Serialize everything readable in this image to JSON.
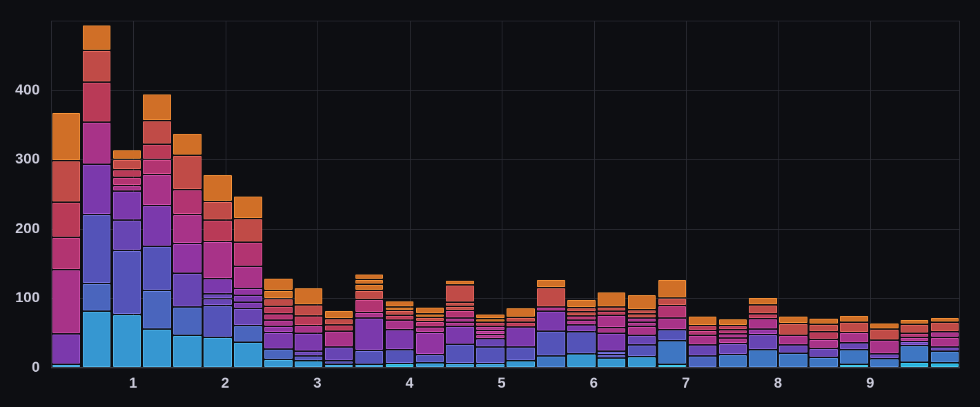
{
  "window": {
    "title": "",
    "kind": "grafana-style histogram panel"
  },
  "colors": {
    "background": "#0d0e12",
    "grid": "#2c2d35",
    "axis_line": "#3a3b44",
    "tick_text": "#ccccdc"
  },
  "chart_data": {
    "type": "bar",
    "variant": "stacked-histogram",
    "title": "",
    "legend": "none",
    "grid": "on",
    "x_axis": {
      "tick_labels": [
        "1",
        "2",
        "3",
        "4",
        "5",
        "6",
        "7",
        "8",
        "9"
      ],
      "tick_values": [
        1,
        2,
        3,
        4,
        5,
        6,
        7,
        8,
        9
      ],
      "min": 0.11,
      "max": 9.97,
      "bucket_width": 0.333
    },
    "y_axis": {
      "tick_labels": [
        "0",
        "100",
        "200",
        "300",
        "400"
      ],
      "tick_values": [
        0,
        100,
        200,
        300,
        400
      ],
      "min": 0,
      "max": 500
    },
    "palette": [
      {
        "name": "series-cyan",
        "fill": "#29b2dd",
        "border": "#4fd4f4"
      },
      {
        "name": "series-light-blue",
        "fill": "#3697d1",
        "border": "#55bdf0"
      },
      {
        "name": "series-steel-blue",
        "fill": "#3e76c2",
        "border": "#5f99e8"
      },
      {
        "name": "series-indigo",
        "fill": "#4a65bd",
        "border": "#6b89e8"
      },
      {
        "name": "series-blue-violet",
        "fill": "#5453b8",
        "border": "#7a78e2"
      },
      {
        "name": "series-violet",
        "fill": "#6745b3",
        "border": "#9067da"
      },
      {
        "name": "series-purple",
        "fill": "#7b39ac",
        "border": "#a55bd4"
      },
      {
        "name": "series-plum",
        "fill": "#9134a1",
        "border": "#bd54c9"
      },
      {
        "name": "series-magenta",
        "fill": "#a83388",
        "border": "#d453b0"
      },
      {
        "name": "series-raspberry",
        "fill": "#b23471",
        "border": "#de5497"
      },
      {
        "name": "series-crimson",
        "fill": "#b93a57",
        "border": "#e25b79"
      },
      {
        "name": "series-red",
        "fill": "#c04b47",
        "border": "#ec6f62"
      },
      {
        "name": "series-orange",
        "fill": "#d06f27",
        "border": "#f9953a"
      }
    ],
    "bars": [
      {
        "x": 0.27,
        "total": 366,
        "segments": [
          [
            1,
            3
          ],
          [
            6,
            42
          ],
          [
            8,
            90
          ],
          [
            9,
            45
          ],
          [
            10,
            49
          ],
          [
            11,
            57
          ],
          [
            12,
            68
          ]
        ]
      },
      {
        "x": 0.61,
        "total": 492,
        "segments": [
          [
            1,
            80
          ],
          [
            3,
            37
          ],
          [
            4,
            98
          ],
          [
            6,
            70
          ],
          [
            8,
            59
          ],
          [
            10,
            56
          ],
          [
            11,
            43
          ],
          [
            12,
            35
          ]
        ]
      },
      {
        "x": 0.94,
        "total": 312,
        "segments": [
          [
            1,
            75
          ],
          [
            4,
            90
          ],
          [
            5,
            42
          ],
          [
            6,
            40
          ],
          [
            8,
            6
          ],
          [
            9,
            9
          ],
          [
            10,
            9
          ],
          [
            11,
            13
          ],
          [
            12,
            12
          ]
        ]
      },
      {
        "x": 1.27,
        "total": 393,
        "segments": [
          [
            1,
            54
          ],
          [
            3,
            53
          ],
          [
            4,
            62
          ],
          [
            6,
            57
          ],
          [
            8,
            42
          ],
          [
            9,
            20
          ],
          [
            10,
            20
          ],
          [
            11,
            32
          ],
          [
            12,
            37
          ]
        ]
      },
      {
        "x": 1.61,
        "total": 336,
        "segments": [
          [
            1,
            45
          ],
          [
            3,
            39
          ],
          [
            5,
            46
          ],
          [
            7,
            41
          ],
          [
            8,
            40
          ],
          [
            9,
            34
          ],
          [
            11,
            47
          ],
          [
            12,
            30
          ]
        ]
      },
      {
        "x": 1.94,
        "total": 277,
        "segments": [
          [
            1,
            42
          ],
          [
            4,
            44
          ],
          [
            5,
            7
          ],
          [
            5,
            5
          ],
          [
            6,
            20
          ],
          [
            8,
            52
          ],
          [
            10,
            29
          ],
          [
            11,
            25
          ],
          [
            12,
            37
          ]
        ]
      },
      {
        "x": 2.27,
        "total": 246,
        "segments": [
          [
            1,
            35
          ],
          [
            3,
            22
          ],
          [
            5,
            23
          ],
          [
            6,
            7
          ],
          [
            6,
            7
          ],
          [
            7,
            8
          ],
          [
            8,
            30
          ],
          [
            9,
            33
          ],
          [
            11,
            32
          ],
          [
            12,
            31
          ]
        ]
      },
      {
        "x": 2.61,
        "total": 127,
        "segments": [
          [
            1,
            10
          ],
          [
            3,
            13
          ],
          [
            6,
            22
          ],
          [
            7,
            7
          ],
          [
            8,
            7
          ],
          [
            9,
            7
          ],
          [
            10,
            9
          ],
          [
            11,
            9
          ],
          [
            12,
            10
          ],
          [
            12,
            15
          ]
        ]
      },
      {
        "x": 2.94,
        "total": 113,
        "segments": [
          [
            1,
            8
          ],
          [
            4,
            5
          ],
          [
            5,
            5
          ],
          [
            6,
            24
          ],
          [
            8,
            9
          ],
          [
            10,
            12
          ],
          [
            11,
            14
          ],
          [
            12,
            22
          ]
        ]
      },
      {
        "x": 3.27,
        "total": 81,
        "segments": [
          [
            1,
            3
          ],
          [
            4,
            3
          ],
          [
            5,
            18
          ],
          [
            8,
            21
          ],
          [
            10,
            7
          ],
          [
            11,
            7
          ],
          [
            12,
            10
          ]
        ]
      },
      {
        "x": 3.61,
        "total": 133,
        "segments": [
          [
            1,
            3
          ],
          [
            4,
            18
          ],
          [
            6,
            45
          ],
          [
            8,
            6
          ],
          [
            9,
            17
          ],
          [
            11,
            10
          ],
          [
            12,
            7
          ],
          [
            12,
            5
          ],
          [
            12,
            6
          ]
        ]
      },
      {
        "x": 3.94,
        "total": 95,
        "segments": [
          [
            0,
            4
          ],
          [
            4,
            18
          ],
          [
            6,
            27
          ],
          [
            8,
            12
          ],
          [
            10,
            5
          ],
          [
            11,
            5
          ],
          [
            12,
            3
          ],
          [
            12,
            7
          ]
        ]
      },
      {
        "x": 4.27,
        "total": 86,
        "segments": [
          [
            1,
            5
          ],
          [
            4,
            10
          ],
          [
            7,
            30
          ],
          [
            8,
            6
          ],
          [
            9,
            6
          ],
          [
            11,
            4
          ],
          [
            12,
            3
          ],
          [
            12,
            8
          ]
        ]
      },
      {
        "x": 4.61,
        "total": 124,
        "segments": [
          [
            1,
            4
          ],
          [
            4,
            26
          ],
          [
            6,
            24
          ],
          [
            8,
            4
          ],
          [
            8,
            4
          ],
          [
            9,
            9
          ],
          [
            11,
            4
          ],
          [
            11,
            4
          ],
          [
            11,
            22
          ],
          [
            12,
            5
          ]
        ]
      },
      {
        "x": 4.94,
        "total": 76,
        "segments": [
          [
            1,
            4
          ],
          [
            4,
            22
          ],
          [
            5,
            10
          ],
          [
            8,
            4
          ],
          [
            8,
            4
          ],
          [
            8,
            4
          ],
          [
            10,
            4
          ],
          [
            12,
            3
          ],
          [
            12,
            5
          ]
        ]
      },
      {
        "x": 5.27,
        "total": 85,
        "segments": [
          [
            1,
            8
          ],
          [
            4,
            18
          ],
          [
            6,
            27
          ],
          [
            10,
            5
          ],
          [
            11,
            5
          ],
          [
            12,
            12
          ]
        ]
      },
      {
        "x": 5.61,
        "total": 125,
        "segments": [
          [
            2,
            15
          ],
          [
            4,
            34
          ],
          [
            6,
            27
          ],
          [
            8,
            4
          ],
          [
            11,
            25
          ],
          [
            12,
            10
          ]
        ]
      },
      {
        "x": 5.94,
        "total": 97,
        "segments": [
          [
            1,
            18
          ],
          [
            4,
            30
          ],
          [
            6,
            8
          ],
          [
            8,
            5
          ],
          [
            9,
            4
          ],
          [
            11,
            4
          ],
          [
            11,
            4
          ],
          [
            12,
            10
          ]
        ]
      },
      {
        "x": 6.27,
        "total": 108,
        "segments": [
          [
            1,
            12
          ],
          [
            4,
            3
          ],
          [
            4,
            3
          ],
          [
            6,
            24
          ],
          [
            8,
            6
          ],
          [
            8,
            16
          ],
          [
            10,
            4
          ],
          [
            11,
            4
          ],
          [
            12,
            20
          ]
        ]
      },
      {
        "x": 6.61,
        "total": 104,
        "segments": [
          [
            1,
            14
          ],
          [
            4,
            15
          ],
          [
            5,
            12
          ],
          [
            8,
            11
          ],
          [
            8,
            4
          ],
          [
            8,
            4
          ],
          [
            11,
            4
          ],
          [
            11,
            4
          ],
          [
            12,
            20
          ]
        ]
      },
      {
        "x": 6.94,
        "total": 125,
        "segments": [
          [
            0,
            3
          ],
          [
            2,
            32
          ],
          [
            4,
            14
          ],
          [
            8,
            15
          ],
          [
            9,
            16
          ],
          [
            11,
            9
          ],
          [
            12,
            24
          ]
        ]
      },
      {
        "x": 7.27,
        "total": 73,
        "segments": [
          [
            3,
            15
          ],
          [
            5,
            14
          ],
          [
            8,
            12
          ],
          [
            9,
            5
          ],
          [
            10,
            5
          ],
          [
            12,
            12
          ]
        ]
      },
      {
        "x": 7.61,
        "total": 69,
        "segments": [
          [
            2,
            17
          ],
          [
            5,
            14
          ],
          [
            8,
            6
          ],
          [
            8,
            4
          ],
          [
            9,
            4
          ],
          [
            10,
            4
          ],
          [
            12,
            8
          ]
        ]
      },
      {
        "x": 7.94,
        "total": 100,
        "segments": [
          [
            2,
            24
          ],
          [
            5,
            20
          ],
          [
            7,
            6
          ],
          [
            8,
            13
          ],
          [
            10,
            5
          ],
          [
            11,
            11
          ],
          [
            12,
            9
          ]
        ]
      },
      {
        "x": 8.27,
        "total": 73,
        "segments": [
          [
            2,
            19
          ],
          [
            5,
            10
          ],
          [
            8,
            12
          ],
          [
            11,
            15
          ],
          [
            12,
            9
          ]
        ]
      },
      {
        "x": 8.61,
        "total": 70,
        "segments": [
          [
            2,
            13
          ],
          [
            5,
            11
          ],
          [
            8,
            11
          ],
          [
            10,
            9
          ],
          [
            11,
            9
          ],
          [
            12,
            7
          ]
        ]
      },
      {
        "x": 8.94,
        "total": 74,
        "segments": [
          [
            0,
            3
          ],
          [
            2,
            19
          ],
          [
            5,
            8
          ],
          [
            8,
            13
          ],
          [
            11,
            13
          ],
          [
            12,
            8
          ]
        ]
      },
      {
        "x": 9.27,
        "total": 63,
        "segments": [
          [
            2,
            11
          ],
          [
            5,
            5
          ],
          [
            8,
            18
          ],
          [
            11,
            14
          ],
          [
            12,
            7
          ]
        ]
      },
      {
        "x": 9.61,
        "total": 68,
        "segments": [
          [
            0,
            6
          ],
          [
            2,
            22
          ],
          [
            5,
            4
          ],
          [
            8,
            4
          ],
          [
            9,
            4
          ],
          [
            11,
            11
          ],
          [
            12,
            5
          ]
        ]
      },
      {
        "x": 9.94,
        "total": 71,
        "segments": [
          [
            0,
            5
          ],
          [
            2,
            15
          ],
          [
            5,
            4
          ],
          [
            8,
            12
          ],
          [
            8,
            6
          ],
          [
            11,
            12
          ],
          [
            12,
            5
          ]
        ]
      }
    ]
  }
}
